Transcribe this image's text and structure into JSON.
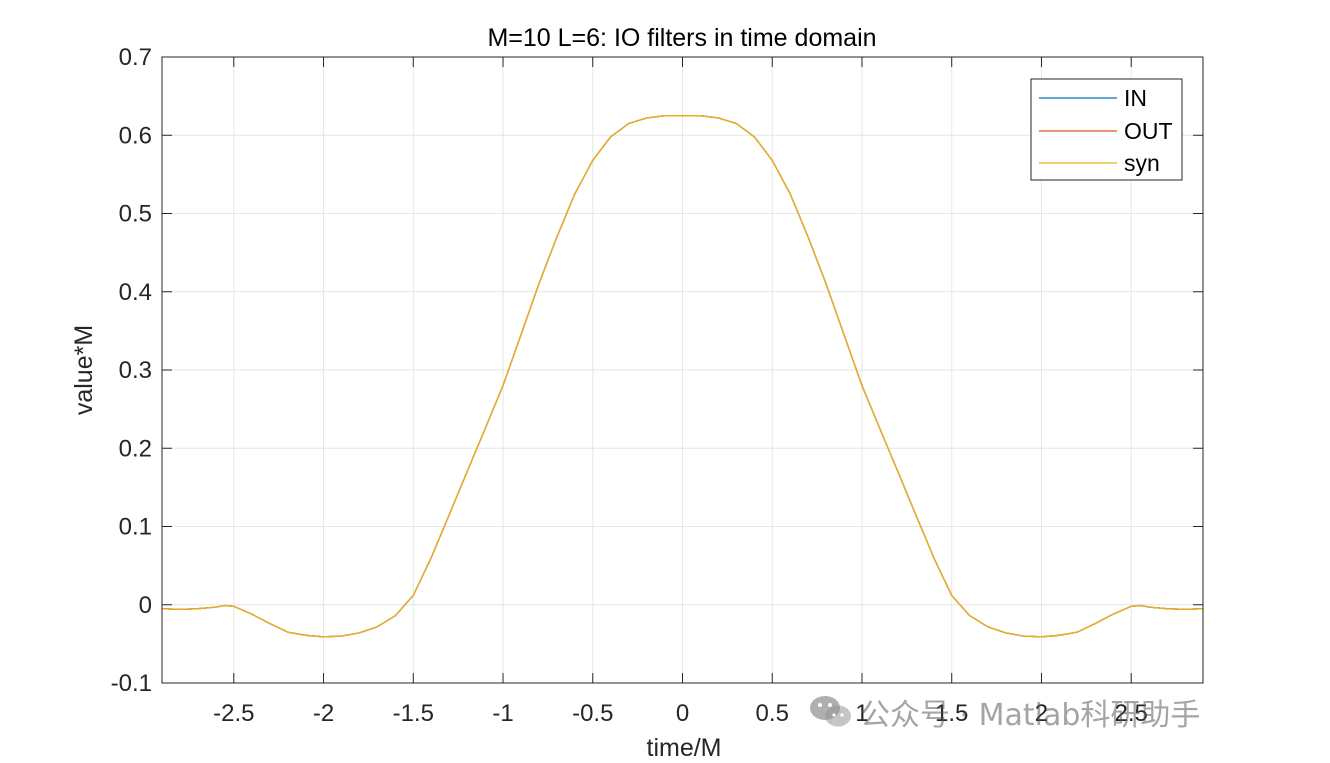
{
  "chart_data": {
    "type": "line",
    "title": "M=10 L=6: IO filters in time domain",
    "xlabel": "time/M",
    "ylabel": "value*M",
    "xlim": [
      -2.9,
      2.9
    ],
    "ylim": [
      -0.1,
      0.7
    ],
    "xticks": [
      -2.5,
      -2,
      -1.5,
      -1,
      -0.5,
      0,
      0.5,
      1,
      1.5,
      2,
      2.5
    ],
    "xtick_labels": [
      "-2.5",
      "-2",
      "-1.5",
      "-1",
      "-0.5",
      "0",
      "0.5",
      "1",
      "1.5",
      "2",
      "2.5"
    ],
    "yticks": [
      -0.1,
      0,
      0.1,
      0.2,
      0.3,
      0.4,
      0.5,
      0.6,
      0.7
    ],
    "ytick_labels": [
      "-0.1",
      "0",
      "0.1",
      "0.2",
      "0.3",
      "0.4",
      "0.5",
      "0.6",
      "0.7"
    ],
    "grid": true,
    "legend_position": "top-right",
    "x": [
      -2.9,
      -2.8,
      -2.7,
      -2.6,
      -2.55,
      -2.5,
      -2.4,
      -2.3,
      -2.2,
      -2.1,
      -2.0,
      -1.9,
      -1.8,
      -1.7,
      -1.6,
      -1.5,
      -1.4,
      -1.3,
      -1.2,
      -1.1,
      -1.0,
      -0.9,
      -0.8,
      -0.7,
      -0.6,
      -0.5,
      -0.4,
      -0.3,
      -0.2,
      -0.1,
      0.0,
      0.1,
      0.2,
      0.3,
      0.4,
      0.5,
      0.6,
      0.7,
      0.8,
      0.9,
      1.0,
      1.1,
      1.2,
      1.3,
      1.4,
      1.5,
      1.6,
      1.7,
      1.8,
      1.9,
      2.0,
      2.1,
      2.2,
      2.3,
      2.4,
      2.5,
      2.55,
      2.6,
      2.7,
      2.8,
      2.9
    ],
    "series": [
      {
        "name": "IN",
        "color": "#0072BD",
        "values": [
          -0.005,
          -0.006,
          -0.005,
          -0.003,
          -0.001,
          -0.002,
          -0.012,
          -0.024,
          -0.035,
          -0.039,
          -0.041,
          -0.04,
          -0.036,
          -0.028,
          -0.014,
          0.012,
          0.06,
          0.115,
          0.17,
          0.225,
          0.28,
          0.345,
          0.41,
          0.47,
          0.525,
          0.568,
          0.598,
          0.615,
          0.622,
          0.625,
          0.625,
          0.625,
          0.622,
          0.615,
          0.598,
          0.568,
          0.525,
          0.47,
          0.41,
          0.345,
          0.28,
          0.225,
          0.17,
          0.115,
          0.06,
          0.012,
          -0.014,
          -0.028,
          -0.036,
          -0.04,
          -0.041,
          -0.039,
          -0.035,
          -0.024,
          -0.012,
          -0.002,
          -0.001,
          -0.003,
          -0.005,
          -0.006,
          -0.005
        ]
      },
      {
        "name": "OUT",
        "color": "#D95319",
        "values": [
          -0.005,
          -0.006,
          -0.005,
          -0.003,
          -0.001,
          -0.002,
          -0.012,
          -0.024,
          -0.035,
          -0.039,
          -0.041,
          -0.04,
          -0.036,
          -0.028,
          -0.014,
          0.012,
          0.06,
          0.115,
          0.17,
          0.225,
          0.28,
          0.345,
          0.41,
          0.47,
          0.525,
          0.568,
          0.598,
          0.615,
          0.622,
          0.625,
          0.625,
          0.625,
          0.622,
          0.615,
          0.598,
          0.568,
          0.525,
          0.47,
          0.41,
          0.345,
          0.28,
          0.225,
          0.17,
          0.115,
          0.06,
          0.012,
          -0.014,
          -0.028,
          -0.036,
          -0.04,
          -0.041,
          -0.039,
          -0.035,
          -0.024,
          -0.012,
          -0.002,
          -0.001,
          -0.003,
          -0.005,
          -0.006,
          -0.005
        ]
      },
      {
        "name": "syn",
        "color": "#EDB120",
        "values": [
          -0.005,
          -0.006,
          -0.005,
          -0.003,
          -0.001,
          -0.002,
          -0.012,
          -0.024,
          -0.035,
          -0.039,
          -0.041,
          -0.04,
          -0.036,
          -0.028,
          -0.014,
          0.012,
          0.06,
          0.115,
          0.17,
          0.225,
          0.28,
          0.345,
          0.41,
          0.47,
          0.525,
          0.568,
          0.598,
          0.615,
          0.622,
          0.625,
          0.625,
          0.625,
          0.622,
          0.615,
          0.598,
          0.568,
          0.525,
          0.47,
          0.41,
          0.345,
          0.28,
          0.225,
          0.17,
          0.115,
          0.06,
          0.012,
          -0.014,
          -0.028,
          -0.036,
          -0.04,
          -0.041,
          -0.039,
          -0.035,
          -0.024,
          -0.012,
          -0.002,
          -0.001,
          -0.003,
          -0.005,
          -0.006,
          -0.005
        ]
      }
    ]
  },
  "watermark": {
    "text": "公众号 · Matlab科研助手",
    "icon": "wechat-icon"
  }
}
